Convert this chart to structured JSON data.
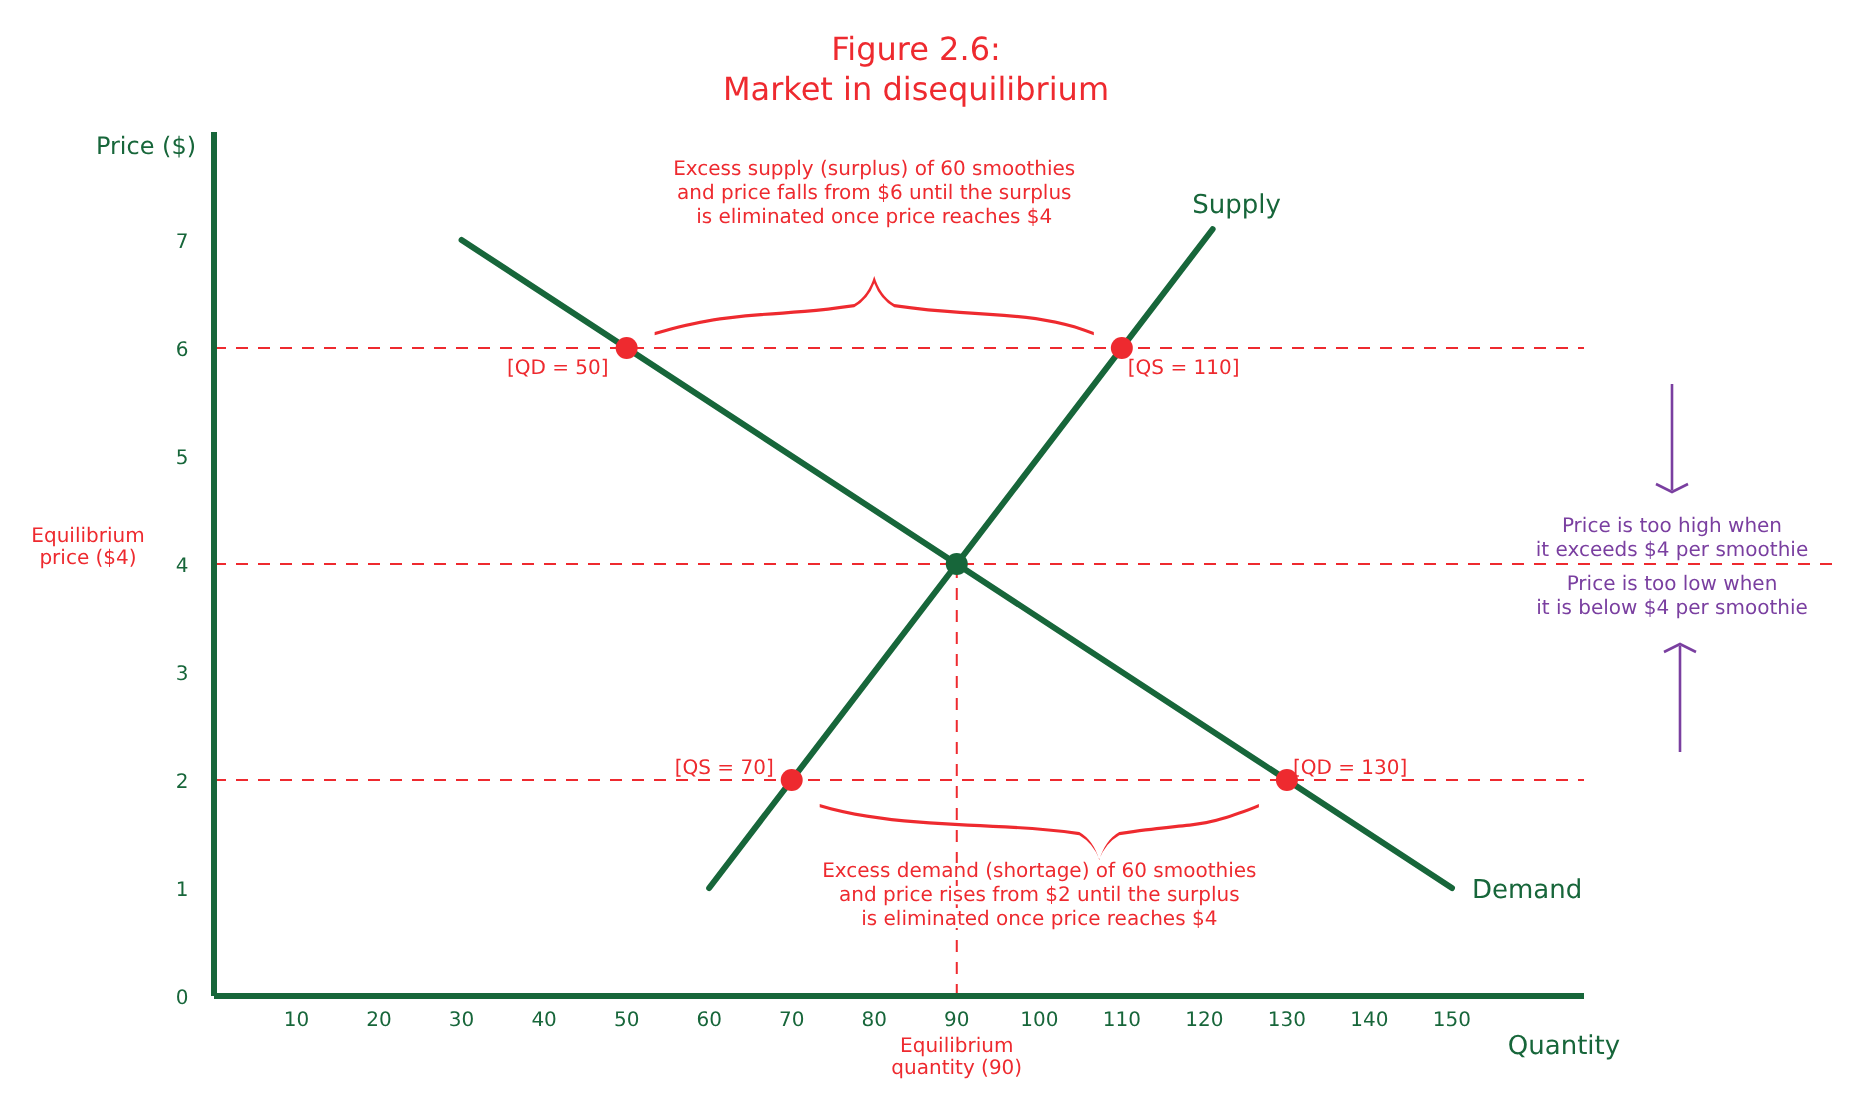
{
  "chart_data": {
    "type": "line",
    "title": "Figure 2.6:",
    "subtitle": "Market in disequilibrium",
    "xlabel": "Quantity",
    "ylabel": "Price ($)",
    "xlim": [
      0,
      166
    ],
    "ylim": [
      0,
      8
    ],
    "xticks": [
      10,
      20,
      30,
      40,
      50,
      60,
      70,
      80,
      90,
      100,
      110,
      120,
      130,
      140,
      150
    ],
    "yticks": [
      0,
      1,
      2,
      3,
      4,
      5,
      6,
      7
    ],
    "grid": false,
    "legend": false,
    "marker": "none",
    "line_style": "solid",
    "series": [
      {
        "name": "Demand",
        "color": "#17663a",
        "x": [
          30,
          150
        ],
        "values": [
          7,
          1
        ]
      },
      {
        "name": "Supply",
        "color": "#17663a",
        "x": [
          60,
          121
        ],
        "values": [
          1,
          7.1
        ]
      },
      {
        "type": "scatter",
        "marker": "circle",
        "x": [
          50,
          110,
          90,
          70,
          130
        ],
        "values": [
          6,
          6,
          4,
          2,
          2
        ],
        "colors": [
          "#ee2a2f",
          "#ee2a2f",
          "#17663a",
          "#ee2a2f",
          "#ee2a2f"
        ]
      }
    ],
    "ref_lines": [
      {
        "axis": "y",
        "value": 6,
        "color": "#ee2a2f",
        "line_style": "dashed"
      },
      {
        "axis": "y",
        "value": 4,
        "label": "Equilibrium\nprice ($4)",
        "color": "#ee2a2f",
        "line_style": "dashed"
      },
      {
        "axis": "y",
        "value": 2,
        "color": "#ee2a2f",
        "line_style": "dashed"
      },
      {
        "axis": "x",
        "value": 90,
        "label": "Equilibrium\nquantity (90)",
        "color": "#ee2a2f",
        "line_style": "dashed"
      }
    ],
    "annotations": [
      {
        "text": "[QD = 50]",
        "x": 50,
        "y": 6
      },
      {
        "text": "[QS = 110]",
        "x": 110,
        "y": 6
      },
      {
        "text": "[QS = 70]",
        "x": 70,
        "y": 2
      },
      {
        "text": "[QD = 130]",
        "x": 130,
        "y": 2
      },
      "Excess supply (surplus) of 60 smoothies\nand price falls from $6 until the surplus\nis eliminated once price reaches $4",
      "Excess demand (shortage) of 60 smoothies\nand price rises from $2 until the surplus\nis eliminated once price reaches $4",
      "Price is too high when\nit exceeds $4 per smoothie",
      "Price is too low when\nit is below $4 per smoothie"
    ]
  }
}
